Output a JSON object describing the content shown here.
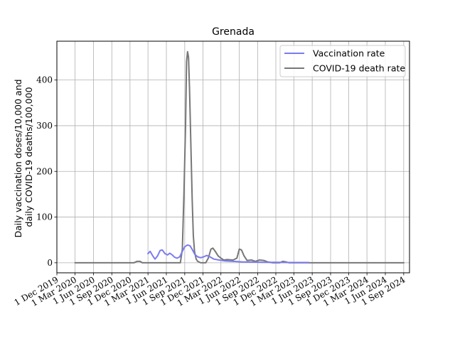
{
  "chart_data": {
    "type": "line",
    "title": "Grenada",
    "ylabel_lines": [
      "Daily vaccination doses/10,000 and",
      "daily COVID-19 deaths/100,000"
    ],
    "xlabel": "",
    "ylim": [
      -22,
      485
    ],
    "xlim": [
      "2019-12-01",
      "2024-09-30"
    ],
    "grid": true,
    "legend_position": "top-right",
    "yticks": [
      0,
      100,
      200,
      300,
      400
    ],
    "xtick_labels": [
      "1 Dec 2019",
      "1 Mar 2020",
      "1 Jun 2020",
      "1 Sep 2020",
      "1 Dec 2020",
      "1 Mar 2021",
      "1 Jun 2021",
      "1 Sep 2021",
      "1 Dec 2021",
      "1 Mar 2022",
      "1 Jun 2022",
      "1 Sep 2022",
      "1 Dec 2022",
      "1 Mar 2023",
      "1 Jun 2023",
      "1 Sep 2023",
      "1 Dec 2023",
      "1 Mar 2024",
      "1 Jun 2024",
      "1 Sep 2024"
    ],
    "xtick_dates": [
      "2019-12-01",
      "2020-03-01",
      "2020-06-01",
      "2020-09-01",
      "2020-12-01",
      "2021-03-01",
      "2021-06-01",
      "2021-09-01",
      "2021-12-01",
      "2022-03-01",
      "2022-06-01",
      "2022-09-01",
      "2022-12-01",
      "2023-03-01",
      "2023-06-01",
      "2023-09-01",
      "2023-12-01",
      "2024-03-01",
      "2024-06-01",
      "2024-09-01"
    ],
    "series": [
      {
        "name": "Vaccination rate",
        "color": "#7b7bf0",
        "points": [
          [
            "2021-03-01",
            20
          ],
          [
            "2021-03-12",
            25
          ],
          [
            "2021-03-25",
            15
          ],
          [
            "2021-04-05",
            8
          ],
          [
            "2021-04-18",
            15
          ],
          [
            "2021-05-01",
            27
          ],
          [
            "2021-05-12",
            28
          ],
          [
            "2021-05-25",
            20
          ],
          [
            "2021-06-07",
            17
          ],
          [
            "2021-06-18",
            21
          ],
          [
            "2021-07-01",
            17
          ],
          [
            "2021-07-12",
            12
          ],
          [
            "2021-07-25",
            10
          ],
          [
            "2021-08-07",
            13
          ],
          [
            "2021-08-20",
            25
          ],
          [
            "2021-09-01",
            35
          ],
          [
            "2021-09-15",
            39
          ],
          [
            "2021-09-28",
            37
          ],
          [
            "2021-10-10",
            28
          ],
          [
            "2021-10-22",
            18
          ],
          [
            "2021-11-05",
            13
          ],
          [
            "2021-11-20",
            11
          ],
          [
            "2021-12-05",
            13
          ],
          [
            "2021-12-20",
            16
          ],
          [
            "2022-01-05",
            13
          ],
          [
            "2022-01-25",
            8
          ],
          [
            "2022-02-20",
            6
          ],
          [
            "2022-03-20",
            4
          ],
          [
            "2022-05-01",
            3
          ],
          [
            "2022-06-15",
            2
          ],
          [
            "2022-08-01",
            1.5
          ],
          [
            "2022-10-01",
            1
          ],
          [
            "2022-12-01",
            0.8
          ],
          [
            "2023-02-01",
            0.6
          ],
          [
            "2023-04-01",
            0.5
          ],
          [
            "2023-05-15",
            0.5
          ]
        ]
      },
      {
        "name": "COVID-19 death rate",
        "color": "#777777",
        "points": [
          [
            "2020-03-01",
            0
          ],
          [
            "2020-12-20",
            0
          ],
          [
            "2021-01-05",
            3
          ],
          [
            "2021-01-20",
            3
          ],
          [
            "2021-02-01",
            0
          ],
          [
            "2021-08-10",
            0
          ],
          [
            "2021-08-20",
            30
          ],
          [
            "2021-08-28",
            150
          ],
          [
            "2021-09-05",
            300
          ],
          [
            "2021-09-10",
            440
          ],
          [
            "2021-09-15",
            462
          ],
          [
            "2021-09-20",
            450
          ],
          [
            "2021-09-25",
            380
          ],
          [
            "2021-10-02",
            250
          ],
          [
            "2021-10-08",
            140
          ],
          [
            "2021-10-14",
            60
          ],
          [
            "2021-10-20",
            25
          ],
          [
            "2021-10-28",
            8
          ],
          [
            "2021-11-05",
            3
          ],
          [
            "2021-11-20",
            0
          ],
          [
            "2021-12-15",
            0
          ],
          [
            "2021-12-28",
            10
          ],
          [
            "2022-01-10",
            30
          ],
          [
            "2022-01-20",
            32
          ],
          [
            "2022-02-01",
            25
          ],
          [
            "2022-02-15",
            15
          ],
          [
            "2022-03-01",
            10
          ],
          [
            "2022-03-15",
            6
          ],
          [
            "2022-04-01",
            7
          ],
          [
            "2022-05-01",
            6
          ],
          [
            "2022-05-20",
            10
          ],
          [
            "2022-06-01",
            30
          ],
          [
            "2022-06-12",
            28
          ],
          [
            "2022-06-25",
            15
          ],
          [
            "2022-07-10",
            5
          ],
          [
            "2022-08-01",
            6
          ],
          [
            "2022-08-20",
            3
          ],
          [
            "2022-09-10",
            6
          ],
          [
            "2022-10-01",
            5
          ],
          [
            "2022-10-20",
            2
          ],
          [
            "2022-11-15",
            0
          ],
          [
            "2022-12-20",
            0
          ],
          [
            "2023-01-05",
            3
          ],
          [
            "2023-01-20",
            2
          ],
          [
            "2023-02-05",
            0
          ],
          [
            "2024-09-01",
            0
          ]
        ]
      }
    ]
  }
}
